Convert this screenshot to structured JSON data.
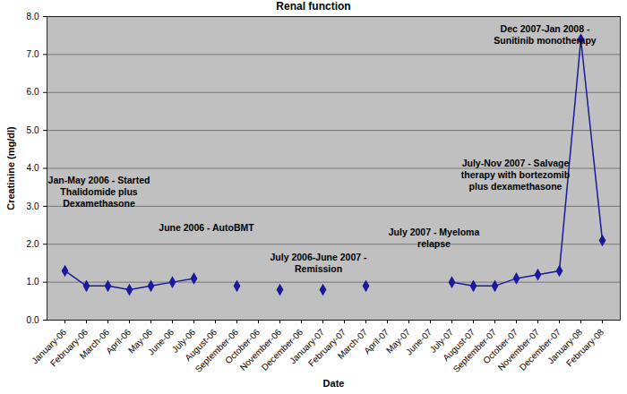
{
  "chart_data": {
    "type": "line",
    "title": "Renal function",
    "x_label": "Date",
    "y_label": "Creatinine (mg/dl)",
    "categories": [
      "January-06",
      "February-06",
      "March-06",
      "April-06",
      "May-06",
      "June-06",
      "July-06",
      "August-06",
      "September-06",
      "October-06",
      "November-06",
      "December-06",
      "January-07",
      "February-07",
      "March-07",
      "April-07",
      "May-07",
      "June-07",
      "July-07",
      "August-07",
      "September-07",
      "October-07",
      "November-07",
      "December-07",
      "January-08",
      "February-08"
    ],
    "values": [
      1.3,
      0.9,
      0.9,
      0.8,
      0.9,
      1.0,
      1.1,
      null,
      0.9,
      null,
      0.8,
      null,
      0.8,
      null,
      0.9,
      null,
      null,
      null,
      1.0,
      0.9,
      0.9,
      1.1,
      1.2,
      1.3,
      7.4,
      2.1
    ],
    "color": "#1a1a9c",
    "marker": "diamond",
    "ylim": [
      0,
      8
    ],
    "yticks": [
      {
        "value": 0,
        "label": "0.0"
      },
      {
        "value": 1,
        "label": "1.0"
      },
      {
        "value": 2,
        "label": "2.0"
      },
      {
        "value": 3,
        "label": "3.0"
      },
      {
        "value": 4,
        "label": "4.0"
      },
      {
        "value": 5,
        "label": "5.0"
      },
      {
        "value": 6,
        "label": "6.0"
      },
      {
        "value": 7,
        "label": "7.0"
      },
      {
        "value": 8,
        "label": "8.0"
      }
    ],
    "grid": true,
    "annotations": [
      "Jan-May 2006 - Started\nThalidomide plus\nDexamethasone",
      "June 2006 - AutoBMT",
      "July 2006-June 2007 -\nRemission",
      "July 2007 - Myeloma\nrelapse",
      "July-Nov 2007 - Salvage\ntherapy with bortezomib\nplus dexamethasone",
      "Dec 2007-Jan 2008 -\nSunitinib monotherapy"
    ]
  }
}
